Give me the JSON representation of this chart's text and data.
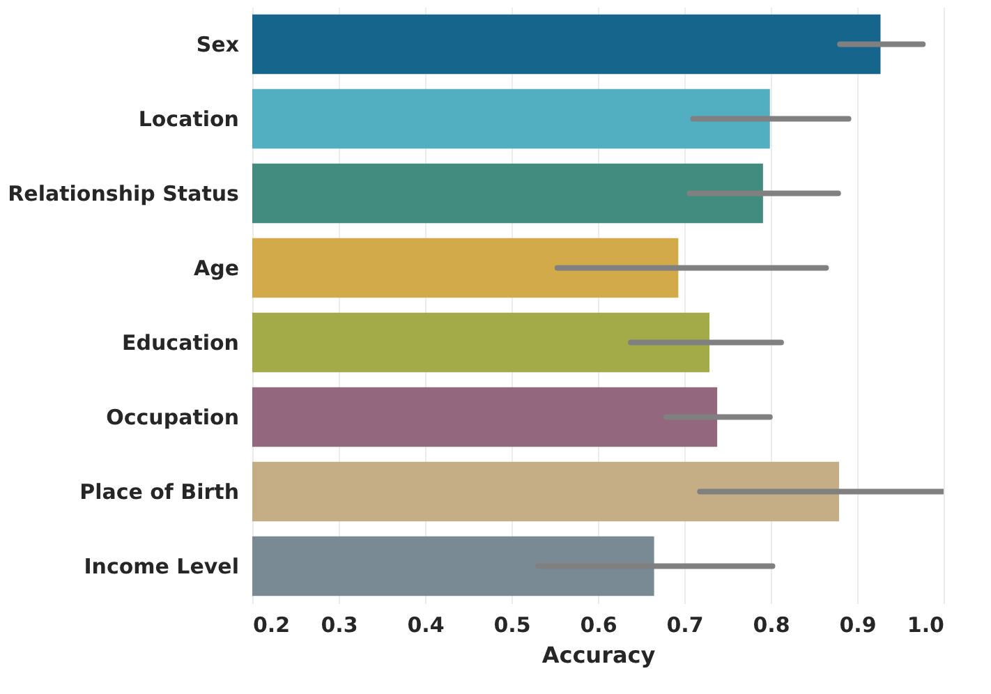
{
  "chart_data": {
    "type": "bar",
    "orientation": "horizontal",
    "xlabel": "Accuracy",
    "categories": [
      "Sex",
      "Location",
      "Relationship Status",
      "Age",
      "Education",
      "Occupation",
      "Place of Birth",
      "Income Level"
    ],
    "values": [
      0.927,
      0.799,
      0.791,
      0.693,
      0.729,
      0.738,
      0.879,
      0.665
    ],
    "colors": [
      "#15658c",
      "#52afc1",
      "#428c7f",
      "#d3aa4a",
      "#a3aa48",
      "#93677d",
      "#c5ae86",
      "#7a8a94"
    ],
    "errors": [
      [
        0.88,
        0.976
      ],
      [
        0.71,
        0.89
      ],
      [
        0.706,
        0.878
      ],
      [
        0.553,
        0.864
      ],
      [
        0.638,
        0.812
      ],
      [
        0.679,
        0.799
      ],
      [
        0.718,
        1.0
      ],
      [
        0.531,
        0.802
      ]
    ],
    "xlim": [
      0.2,
      1.0
    ],
    "xticks": [
      0.2,
      0.3,
      0.4,
      0.5,
      0.6,
      0.7,
      0.8,
      0.9,
      {
        "value": 1,
        "label": "1.0"
      }
    ],
    "grid": "x"
  }
}
